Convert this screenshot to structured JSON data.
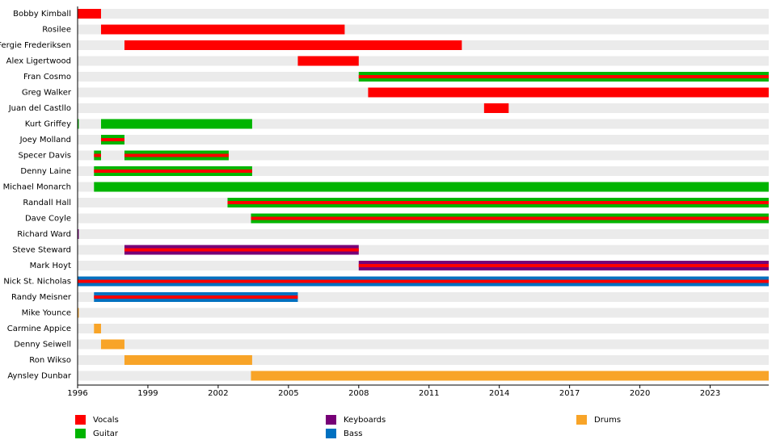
{
  "chart_data": {
    "type": "timeline",
    "xlim": [
      1996,
      2025.5
    ],
    "xticks": [
      1996,
      1999,
      2002,
      2005,
      2008,
      2011,
      2014,
      2017,
      2020,
      2023
    ],
    "roles": [
      {
        "name": "Vocals",
        "color": "#ff0000"
      },
      {
        "name": "Guitar",
        "color": "#00b400"
      },
      {
        "name": "Keyboards",
        "color": "#770077"
      },
      {
        "name": "Bass",
        "color": "#0070c0"
      },
      {
        "name": "Drums",
        "color": "#f8a428"
      }
    ],
    "rows": [
      {
        "name": "Bobby Kimball",
        "spans": [
          {
            "start": 1996,
            "end": 1997,
            "roles": [
              "Vocals"
            ]
          }
        ]
      },
      {
        "name": "Rosilee",
        "spans": [
          {
            "start": 1997,
            "end": 2007.4,
            "roles": [
              "Vocals"
            ]
          }
        ]
      },
      {
        "name": "Fergie Frederiksen",
        "spans": [
          {
            "start": 1998,
            "end": 2012.4,
            "roles": [
              "Vocals"
            ]
          }
        ]
      },
      {
        "name": "Alex Ligertwood",
        "spans": [
          {
            "start": 2005.4,
            "end": 2008,
            "roles": [
              "Vocals"
            ]
          }
        ]
      },
      {
        "name": "Fran Cosmo",
        "spans": [
          {
            "start": 2008,
            "end": 2025.5,
            "roles": [
              "Guitar",
              "Vocals"
            ]
          }
        ]
      },
      {
        "name": "Greg Walker",
        "spans": [
          {
            "start": 2008.4,
            "end": 2025.5,
            "roles": [
              "Vocals"
            ]
          }
        ]
      },
      {
        "name": "Juan del Castllo",
        "spans": [
          {
            "start": 2013.35,
            "end": 2014.4,
            "roles": [
              "Vocals"
            ]
          }
        ]
      },
      {
        "name": "Kurt Griffey",
        "spans": [
          {
            "start": 1996,
            "end": 1996.05,
            "roles": [
              "Guitar"
            ]
          },
          {
            "start": 1997,
            "end": 2003.45,
            "roles": [
              "Guitar"
            ]
          }
        ]
      },
      {
        "name": "Joey Molland",
        "spans": [
          {
            "start": 1997,
            "end": 1998,
            "roles": [
              "Guitar",
              "Vocals"
            ]
          }
        ]
      },
      {
        "name": "Specer Davis",
        "spans": [
          {
            "start": 1996.7,
            "end": 1997,
            "roles": [
              "Guitar",
              "Vocals"
            ]
          },
          {
            "start": 1998,
            "end": 2002.45,
            "roles": [
              "Guitar",
              "Vocals"
            ]
          }
        ]
      },
      {
        "name": "Denny Laine",
        "spans": [
          {
            "start": 1996.7,
            "end": 2003.45,
            "roles": [
              "Guitar",
              "Vocals"
            ]
          }
        ]
      },
      {
        "name": "Michael Monarch",
        "spans": [
          {
            "start": 1996.7,
            "end": 2025.5,
            "roles": [
              "Guitar"
            ]
          }
        ]
      },
      {
        "name": "Randall Hall",
        "spans": [
          {
            "start": 2002.4,
            "end": 2025.5,
            "roles": [
              "Guitar",
              "Vocals"
            ]
          }
        ]
      },
      {
        "name": "Dave Coyle",
        "spans": [
          {
            "start": 2003.4,
            "end": 2025.5,
            "roles": [
              "Guitar",
              "Vocals"
            ]
          }
        ]
      },
      {
        "name": "Richard Ward",
        "spans": [
          {
            "start": 1996,
            "end": 1996.05,
            "roles": [
              "Keyboards"
            ]
          }
        ]
      },
      {
        "name": "Steve Steward",
        "spans": [
          {
            "start": 1998,
            "end": 2008,
            "roles": [
              "Keyboards",
              "Vocals"
            ]
          }
        ]
      },
      {
        "name": "Mark Hoyt",
        "spans": [
          {
            "start": 2008,
            "end": 2025.5,
            "roles": [
              "Keyboards",
              "Vocals"
            ]
          }
        ]
      },
      {
        "name": "Nick St. Nicholas",
        "spans": [
          {
            "start": 1996,
            "end": 2025.5,
            "roles": [
              "Bass",
              "Vocals"
            ]
          }
        ]
      },
      {
        "name": "Randy Meisner",
        "spans": [
          {
            "start": 1996.7,
            "end": 2005.4,
            "roles": [
              "Bass",
              "Vocals"
            ]
          }
        ]
      },
      {
        "name": "Mike Younce",
        "spans": [
          {
            "start": 1996,
            "end": 1996.05,
            "roles": [
              "Drums"
            ]
          }
        ]
      },
      {
        "name": "Carmine Appice",
        "spans": [
          {
            "start": 1996.7,
            "end": 1997,
            "roles": [
              "Drums"
            ]
          }
        ]
      },
      {
        "name": "Denny Seiwell",
        "spans": [
          {
            "start": 1997,
            "end": 1998,
            "roles": [
              "Drums"
            ]
          }
        ]
      },
      {
        "name": "Ron Wikso",
        "spans": [
          {
            "start": 1998,
            "end": 2003.45,
            "roles": [
              "Drums"
            ]
          }
        ]
      },
      {
        "name": "Aynsley Dunbar",
        "spans": [
          {
            "start": 2003.4,
            "end": 2025.5,
            "roles": [
              "Drums"
            ]
          }
        ]
      }
    ]
  }
}
